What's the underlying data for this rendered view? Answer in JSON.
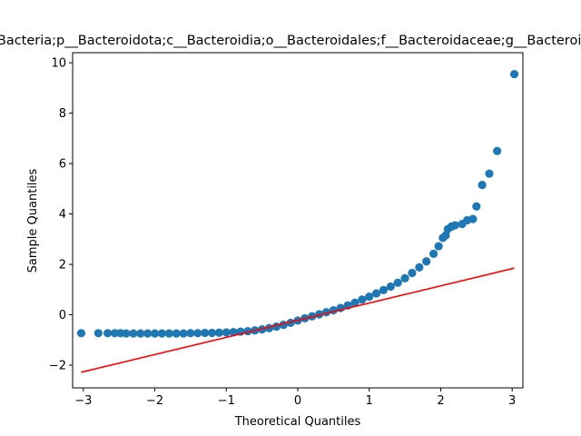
{
  "chart_data": {
    "type": "scatter",
    "title": "k__Bacteria;p__Bacteroidota;c__Bacteroidia;o__Bacteroidales;f__Bacteroidaceae;g__Bacteroides",
    "xlabel": "Theoretical Quantiles",
    "ylabel": "Sample Quantiles",
    "xlim": [
      -3.15,
      3.15
    ],
    "ylim": [
      -2.9,
      10.4
    ],
    "xticks": [
      -3,
      -2,
      -1,
      0,
      1,
      2,
      3
    ],
    "yticks": [
      -2,
      0,
      2,
      4,
      6,
      8,
      10
    ],
    "grid": false,
    "marker_color": "#1f77b4",
    "line_color": "#ff0000",
    "reference_line": {
      "x": [
        -3.03,
        3.03
      ],
      "y": [
        -2.28,
        1.85
      ]
    },
    "series": [
      {
        "points": [
          [
            -3.03,
            -0.73
          ],
          [
            -2.79,
            -0.73
          ],
          [
            -2.66,
            -0.73
          ],
          [
            -2.56,
            -0.73
          ],
          [
            -2.48,
            -0.73
          ],
          [
            -2.4,
            -0.74
          ],
          [
            -2.3,
            -0.74
          ],
          [
            -2.2,
            -0.74
          ],
          [
            -2.1,
            -0.74
          ],
          [
            -2.0,
            -0.74
          ],
          [
            -1.9,
            -0.74
          ],
          [
            -1.8,
            -0.74
          ],
          [
            -1.7,
            -0.74
          ],
          [
            -1.6,
            -0.74
          ],
          [
            -1.5,
            -0.73
          ],
          [
            -1.4,
            -0.73
          ],
          [
            -1.3,
            -0.72
          ],
          [
            -1.2,
            -0.72
          ],
          [
            -1.1,
            -0.71
          ],
          [
            -1.0,
            -0.7
          ],
          [
            -0.9,
            -0.69
          ],
          [
            -0.8,
            -0.67
          ],
          [
            -0.7,
            -0.65
          ],
          [
            -0.6,
            -0.62
          ],
          [
            -0.5,
            -0.58
          ],
          [
            -0.4,
            -0.53
          ],
          [
            -0.3,
            -0.47
          ],
          [
            -0.2,
            -0.4
          ],
          [
            -0.1,
            -0.32
          ],
          [
            0.0,
            -0.23
          ],
          [
            0.1,
            -0.14
          ],
          [
            0.2,
            -0.06
          ],
          [
            0.3,
            0.02
          ],
          [
            0.4,
            0.1
          ],
          [
            0.5,
            0.18
          ],
          [
            0.6,
            0.27
          ],
          [
            0.7,
            0.37
          ],
          [
            0.8,
            0.48
          ],
          [
            0.9,
            0.6
          ],
          [
            1.0,
            0.72
          ],
          [
            1.1,
            0.85
          ],
          [
            1.2,
            0.98
          ],
          [
            1.3,
            1.12
          ],
          [
            1.4,
            1.27
          ],
          [
            1.5,
            1.45
          ],
          [
            1.6,
            1.66
          ],
          [
            1.7,
            1.88
          ],
          [
            1.8,
            2.12
          ],
          [
            1.9,
            2.42
          ],
          [
            1.97,
            2.72
          ],
          [
            2.03,
            3.05
          ],
          [
            2.07,
            3.15
          ],
          [
            2.1,
            3.4
          ],
          [
            2.15,
            3.5
          ],
          [
            2.2,
            3.55
          ],
          [
            2.3,
            3.6
          ],
          [
            2.37,
            3.75
          ],
          [
            2.45,
            3.8
          ],
          [
            2.5,
            4.3
          ],
          [
            2.58,
            5.15
          ],
          [
            2.68,
            5.6
          ],
          [
            2.79,
            6.5
          ],
          [
            3.03,
            9.55
          ]
        ]
      }
    ]
  }
}
